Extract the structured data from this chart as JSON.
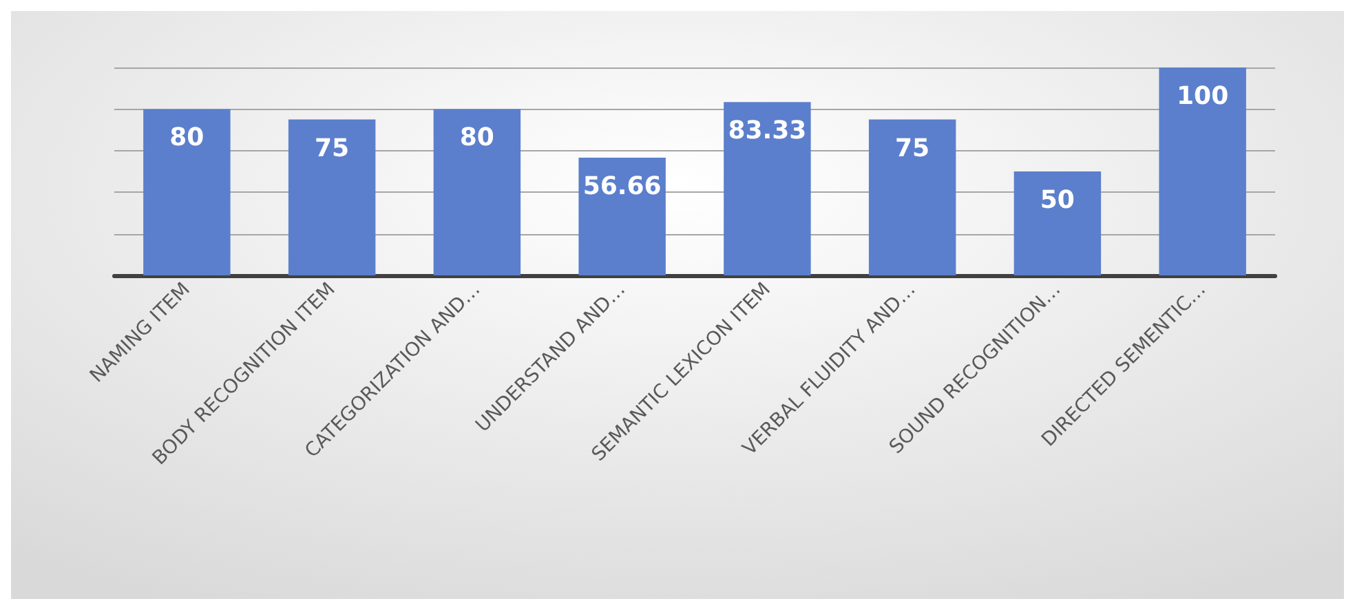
{
  "chart_data": {
    "type": "bar",
    "categories": [
      "NAMING ITEM",
      "BODY RECOGNITION ITEM",
      "CATEGORIZATION AND…",
      "UNDERSTAND AND…",
      "SEMANTIC LEXICON ITEM",
      "VERBAL FLUIDITY AND…",
      "SOUND RECOGNITION…",
      "DIRECTED SEMENTIC…"
    ],
    "values": [
      80,
      75,
      80,
      56.66,
      83.33,
      75,
      50,
      100
    ],
    "color": "#5b7fcc",
    "ylim": [
      0,
      100
    ],
    "yticks": [
      0,
      20,
      40,
      60,
      80,
      100
    ],
    "grid": "y",
    "tick_labels": "x",
    "data_labels": true
  }
}
